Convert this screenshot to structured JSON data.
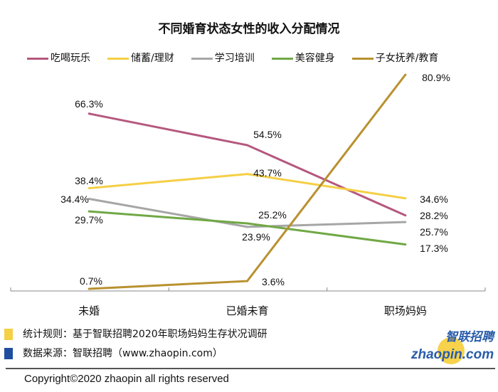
{
  "chart_data": {
    "type": "line",
    "title": "不同婚育状态女性的收入分配情况",
    "categories": [
      "未婚",
      "已婚未育",
      "职场妈妈"
    ],
    "ylim": [
      0,
      90
    ],
    "grid": false,
    "legend_position": "top",
    "series": [
      {
        "name": "吃喝玩乐",
        "values": [
          66.3,
          54.5,
          28.2
        ],
        "labels": [
          "66.3%",
          "54.5%",
          "28.2%"
        ],
        "color": "#B5587E"
      },
      {
        "name": "储蓄/理财",
        "values": [
          38.4,
          43.7,
          34.6
        ],
        "labels": [
          "38.4%",
          "43.7%",
          "34.6%"
        ],
        "color": "#F5CF45"
      },
      {
        "name": "学习培训",
        "values": [
          34.4,
          23.9,
          25.7
        ],
        "labels": [
          "34.4%",
          "23.9%",
          "25.7%"
        ],
        "color": "#A6A6A6"
      },
      {
        "name": "美容健身",
        "values": [
          29.7,
          25.2,
          17.3
        ],
        "labels": [
          "29.7%",
          "25.2%",
          "17.3%"
        ],
        "color": "#70A845"
      },
      {
        "name": "子女抚养/教育",
        "values": [
          0.7,
          3.6,
          80.9
        ],
        "labels": [
          "0.7%",
          "3.6%",
          "80.9%"
        ],
        "color": "#B8912F"
      }
    ]
  },
  "notes": [
    {
      "text": "统计规则：基于智联招聘2020年职场妈妈生存状况调研",
      "color": "#F5CF45"
    },
    {
      "text": "数据来源：智联招聘（www.zhaopin.com）",
      "color": "#1F4E9E"
    }
  ],
  "logo": {
    "cn": "智联招聘",
    "en": "zhaopin.com"
  },
  "copyright": "Copyright©2020  zhaopin all rights reserved"
}
